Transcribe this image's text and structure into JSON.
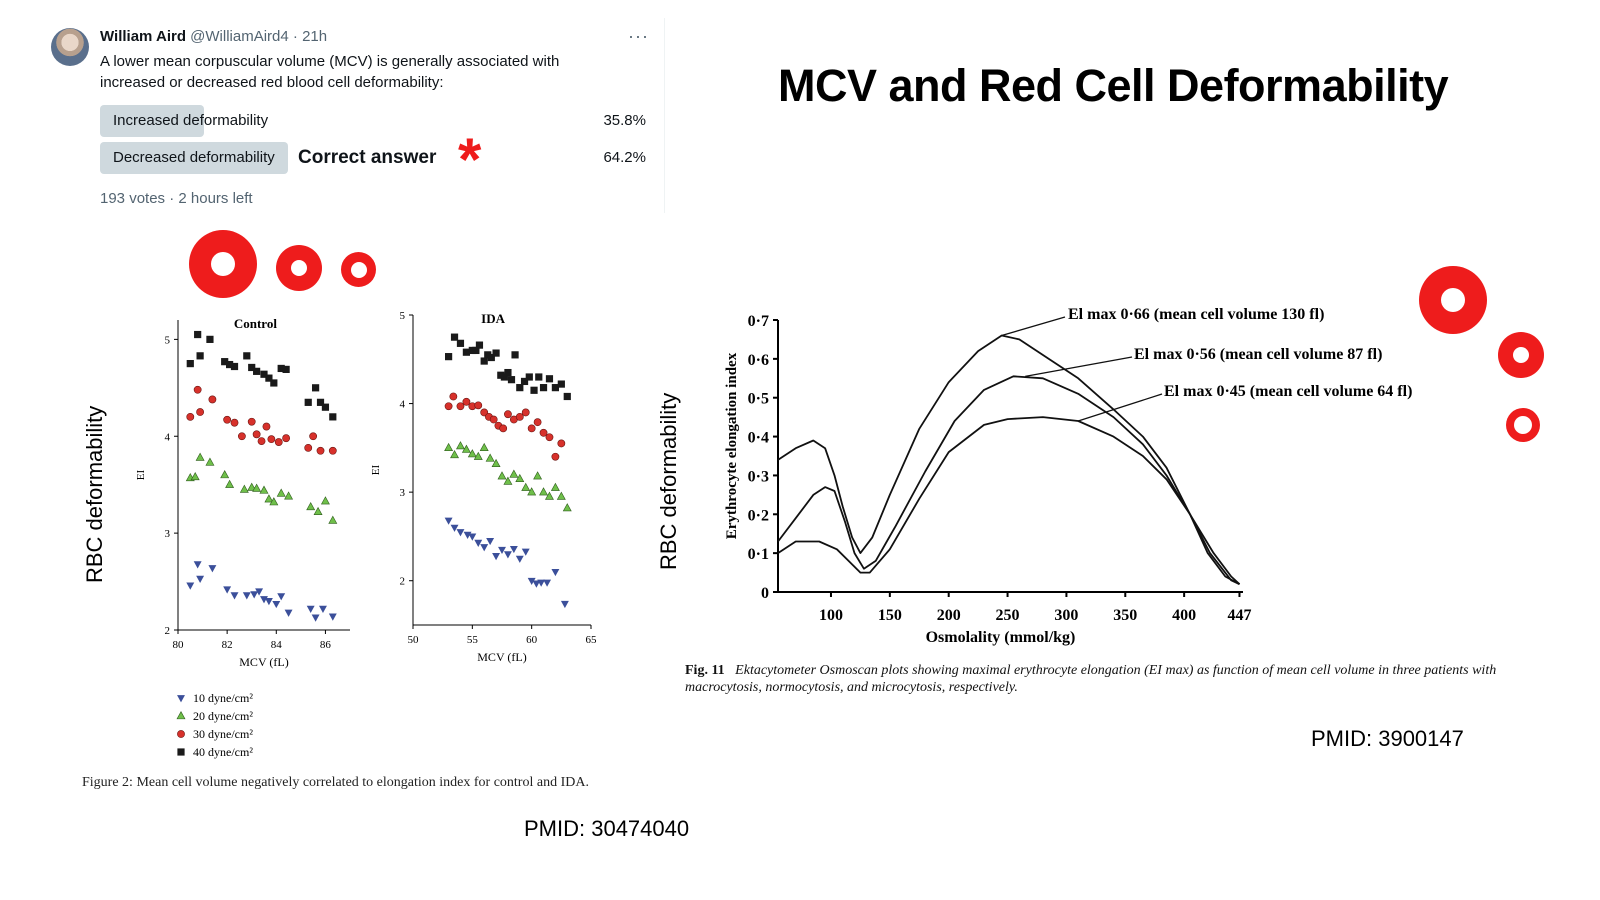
{
  "tweet": {
    "author_name": "William Aird",
    "author_meta": "@WilliamAird4 · 21h",
    "more_icon": "more-horizontal-icon",
    "question": "A lower mean corpuscular volume (MCV) is generally associated with increased or decreased red blood cell deformability:",
    "options": [
      {
        "label": "Increased deformability",
        "percent": "35.8%",
        "fraction": 0.358
      },
      {
        "label": "Decreased deformability",
        "percent": "64.2%",
        "fraction": 0.642
      }
    ],
    "correct_annotation": "Correct answer",
    "asterisk": "*",
    "votes": "193 votes · 2 hours left"
  },
  "title": "MCV and Red Cell Deformability",
  "accent_color": "#ee1c1c",
  "left_figure": {
    "side_label": "RBC deformability",
    "caption": "Figure 2: Mean cell volume negatively correlated to elongation index for control and IDA.",
    "pmid": "PMID: 30474040",
    "legend": [
      {
        "label": "10 dyne/cm²",
        "marker": "down-triangle",
        "color": "#3b4f9a"
      },
      {
        "label": "20 dyne/cm²",
        "marker": "up-triangle",
        "color": "#6fbf4a"
      },
      {
        "label": "30 dyne/cm²",
        "marker": "circle",
        "color": "#d7312b"
      },
      {
        "label": "40 dyne/cm²",
        "marker": "square",
        "color": "#1a1a1a"
      }
    ]
  },
  "right_figure": {
    "side_label": "RBC deformability",
    "annotations": [
      "El max 0·66 (mean cell volume 130 fl)",
      "El max 0·56 (mean cell volume 87 fl)",
      "El max 0·45 (mean cell volume 64 fl)"
    ],
    "caption_prefix": "Fig. 11",
    "caption": "Ektacytometer Osmoscan plots showing maximal erythrocyte elongation (EI max) as function of mean cell volume in three patients with macrocytosis, normocytosis, and microcytosis, respectively.",
    "pmid": "PMID: 3900147"
  },
  "chart_data": [
    {
      "type": "scatter",
      "title": "Control",
      "xlabel": "MCV (fL)",
      "ylabel": "EI",
      "xlim": [
        80,
        87
      ],
      "ylim": [
        2,
        5.2
      ],
      "xticks": [
        80,
        82,
        84,
        86
      ],
      "yticks": [
        2,
        3,
        4,
        5
      ],
      "grid": false,
      "series": [
        {
          "name": "40 dyne/cm²",
          "points": [
            [
              80.5,
              4.75
            ],
            [
              80.8,
              5.05
            ],
            [
              80.9,
              4.83
            ],
            [
              81.3,
              5.0
            ],
            [
              81.9,
              4.77
            ],
            [
              82.1,
              4.74
            ],
            [
              82.3,
              4.72
            ],
            [
              82.8,
              4.83
            ],
            [
              83.0,
              4.71
            ],
            [
              83.2,
              4.67
            ],
            [
              83.5,
              4.64
            ],
            [
              83.7,
              4.6
            ],
            [
              83.9,
              4.55
            ],
            [
              84.2,
              4.7
            ],
            [
              84.4,
              4.69
            ],
            [
              85.3,
              4.35
            ],
            [
              85.6,
              4.5
            ],
            [
              85.8,
              4.35
            ],
            [
              86.0,
              4.3
            ],
            [
              86.3,
              4.2
            ]
          ]
        },
        {
          "name": "30 dyne/cm²",
          "points": [
            [
              80.5,
              4.2
            ],
            [
              80.8,
              4.48
            ],
            [
              80.9,
              4.25
            ],
            [
              81.4,
              4.38
            ],
            [
              82.0,
              4.17
            ],
            [
              82.3,
              4.14
            ],
            [
              82.6,
              4.0
            ],
            [
              83.0,
              4.15
            ],
            [
              83.2,
              4.02
            ],
            [
              83.4,
              3.95
            ],
            [
              83.6,
              4.1
            ],
            [
              83.8,
              3.97
            ],
            [
              84.1,
              3.94
            ],
            [
              84.4,
              3.98
            ],
            [
              85.3,
              3.88
            ],
            [
              85.5,
              4.0
            ],
            [
              85.8,
              3.85
            ],
            [
              86.3,
              3.85
            ]
          ]
        },
        {
          "name": "20 dyne/cm²",
          "points": [
            [
              80.5,
              3.57
            ],
            [
              80.7,
              3.58
            ],
            [
              80.9,
              3.78
            ],
            [
              81.3,
              3.73
            ],
            [
              81.9,
              3.6
            ],
            [
              82.1,
              3.5
            ],
            [
              82.7,
              3.45
            ],
            [
              83.0,
              3.47
            ],
            [
              83.2,
              3.46
            ],
            [
              83.5,
              3.44
            ],
            [
              83.7,
              3.35
            ],
            [
              83.9,
              3.32
            ],
            [
              84.2,
              3.41
            ],
            [
              84.5,
              3.38
            ],
            [
              85.4,
              3.27
            ],
            [
              85.7,
              3.22
            ],
            [
              86.0,
              3.33
            ],
            [
              86.3,
              3.13
            ]
          ]
        },
        {
          "name": "10 dyne/cm²",
          "points": [
            [
              80.5,
              2.46
            ],
            [
              80.8,
              2.68
            ],
            [
              80.9,
              2.53
            ],
            [
              81.4,
              2.64
            ],
            [
              82.0,
              2.42
            ],
            [
              82.3,
              2.36
            ],
            [
              82.8,
              2.36
            ],
            [
              83.1,
              2.37
            ],
            [
              83.3,
              2.4
            ],
            [
              83.5,
              2.32
            ],
            [
              83.7,
              2.3
            ],
            [
              84.0,
              2.27
            ],
            [
              84.2,
              2.35
            ],
            [
              84.5,
              2.18
            ],
            [
              85.4,
              2.22
            ],
            [
              85.6,
              2.13
            ],
            [
              85.9,
              2.22
            ],
            [
              86.3,
              2.14
            ]
          ]
        }
      ]
    },
    {
      "type": "scatter",
      "title": "IDA",
      "xlabel": "MCV (fL)",
      "ylabel": "EI",
      "xlim": [
        50,
        65
      ],
      "ylim": [
        1.5,
        5
      ],
      "xticks": [
        50,
        55,
        60,
        65
      ],
      "yticks": [
        2,
        3,
        4,
        5
      ],
      "grid": false,
      "series": [
        {
          "name": "40 dyne/cm²",
          "points": [
            [
              53.0,
              4.53
            ],
            [
              53.5,
              4.75
            ],
            [
              54.0,
              4.68
            ],
            [
              54.5,
              4.58
            ],
            [
              55.0,
              4.6
            ],
            [
              55.3,
              4.6
            ],
            [
              55.6,
              4.66
            ],
            [
              56.0,
              4.48
            ],
            [
              56.3,
              4.55
            ],
            [
              56.6,
              4.52
            ],
            [
              57.0,
              4.57
            ],
            [
              57.4,
              4.32
            ],
            [
              57.7,
              4.3
            ],
            [
              58.0,
              4.35
            ],
            [
              58.3,
              4.27
            ],
            [
              58.6,
              4.55
            ],
            [
              59.0,
              4.18
            ],
            [
              59.4,
              4.25
            ],
            [
              59.8,
              4.3
            ],
            [
              60.2,
              4.15
            ],
            [
              60.6,
              4.3
            ],
            [
              61.0,
              4.18
            ],
            [
              61.5,
              4.28
            ],
            [
              62.0,
              4.18
            ],
            [
              62.5,
              4.22
            ],
            [
              63.0,
              4.08
            ]
          ]
        },
        {
          "name": "30 dyne/cm²",
          "points": [
            [
              53.0,
              3.97
            ],
            [
              53.4,
              4.08
            ],
            [
              54.0,
              3.97
            ],
            [
              54.5,
              4.02
            ],
            [
              55.0,
              3.97
            ],
            [
              55.5,
              3.98
            ],
            [
              56.0,
              3.9
            ],
            [
              56.4,
              3.85
            ],
            [
              56.8,
              3.82
            ],
            [
              57.2,
              3.75
            ],
            [
              57.6,
              3.72
            ],
            [
              58.0,
              3.88
            ],
            [
              58.5,
              3.82
            ],
            [
              59.0,
              3.85
            ],
            [
              59.5,
              3.9
            ],
            [
              60.0,
              3.72
            ],
            [
              60.5,
              3.79
            ],
            [
              61.0,
              3.67
            ],
            [
              61.5,
              3.62
            ],
            [
              62.0,
              3.4
            ],
            [
              62.5,
              3.55
            ]
          ]
        },
        {
          "name": "20 dyne/cm²",
          "points": [
            [
              53.0,
              3.5
            ],
            [
              53.5,
              3.42
            ],
            [
              54.0,
              3.52
            ],
            [
              54.5,
              3.48
            ],
            [
              55.0,
              3.43
            ],
            [
              55.5,
              3.4
            ],
            [
              56.0,
              3.5
            ],
            [
              56.5,
              3.38
            ],
            [
              57.0,
              3.32
            ],
            [
              57.5,
              3.18
            ],
            [
              58.0,
              3.12
            ],
            [
              58.5,
              3.2
            ],
            [
              59.0,
              3.15
            ],
            [
              59.5,
              3.05
            ],
            [
              60.0,
              3.0
            ],
            [
              60.5,
              3.18
            ],
            [
              61.0,
              3.0
            ],
            [
              61.5,
              2.95
            ],
            [
              62.0,
              3.05
            ],
            [
              62.5,
              2.95
            ],
            [
              63.0,
              2.82
            ]
          ]
        },
        {
          "name": "10 dyne/cm²",
          "points": [
            [
              53.0,
              2.68
            ],
            [
              53.5,
              2.6
            ],
            [
              54.0,
              2.55
            ],
            [
              54.6,
              2.52
            ],
            [
              55.0,
              2.5
            ],
            [
              55.5,
              2.43
            ],
            [
              56.0,
              2.38
            ],
            [
              56.5,
              2.45
            ],
            [
              57.0,
              2.28
            ],
            [
              57.5,
              2.35
            ],
            [
              58.0,
              2.3
            ],
            [
              58.5,
              2.36
            ],
            [
              59.0,
              2.25
            ],
            [
              59.5,
              2.33
            ],
            [
              60.0,
              2.0
            ],
            [
              60.4,
              1.97
            ],
            [
              60.8,
              1.98
            ],
            [
              61.3,
              1.98
            ],
            [
              62.0,
              2.1
            ],
            [
              62.8,
              1.74
            ]
          ]
        }
      ]
    },
    {
      "type": "line",
      "xlabel": "Osmolality (mmol/kg)",
      "ylabel": "Erythrocyte elongation index",
      "xlim": [
        55,
        450
      ],
      "ylim": [
        0,
        0.7
      ],
      "xticks": [
        100,
        150,
        200,
        250,
        300,
        350,
        400,
        447
      ],
      "yticks": [
        0,
        0.1,
        0.2,
        0.3,
        0.4,
        0.5,
        0.6,
        0.7
      ],
      "series": [
        {
          "name": "El max 0·66 (mean cell volume 130 fl)",
          "points": [
            [
              55,
              0.34
            ],
            [
              70,
              0.37
            ],
            [
              85,
              0.39
            ],
            [
              95,
              0.37
            ],
            [
              103,
              0.3
            ],
            [
              110,
              0.22
            ],
            [
              118,
              0.14
            ],
            [
              125,
              0.1
            ],
            [
              135,
              0.14
            ],
            [
              150,
              0.25
            ],
            [
              175,
              0.42
            ],
            [
              200,
              0.54
            ],
            [
              225,
              0.62
            ],
            [
              245,
              0.66
            ],
            [
              260,
              0.65
            ],
            [
              285,
              0.6
            ],
            [
              310,
              0.55
            ],
            [
              340,
              0.47
            ],
            [
              365,
              0.4
            ],
            [
              385,
              0.32
            ],
            [
              405,
              0.2
            ],
            [
              420,
              0.1
            ],
            [
              435,
              0.04
            ],
            [
              447,
              0.02
            ]
          ]
        },
        {
          "name": "El max 0·56 (mean cell volume 87 fl)",
          "points": [
            [
              55,
              0.13
            ],
            [
              70,
              0.19
            ],
            [
              85,
              0.25
            ],
            [
              95,
              0.27
            ],
            [
              103,
              0.26
            ],
            [
              112,
              0.18
            ],
            [
              120,
              0.1
            ],
            [
              128,
              0.06
            ],
            [
              138,
              0.08
            ],
            [
              155,
              0.17
            ],
            [
              180,
              0.31
            ],
            [
              205,
              0.44
            ],
            [
              230,
              0.52
            ],
            [
              255,
              0.555
            ],
            [
              280,
              0.55
            ],
            [
              310,
              0.51
            ],
            [
              340,
              0.45
            ],
            [
              365,
              0.38
            ],
            [
              385,
              0.3
            ],
            [
              405,
              0.2
            ],
            [
              422,
              0.1
            ],
            [
              440,
              0.03
            ],
            [
              447,
              0.02
            ]
          ]
        },
        {
          "name": "El max 0·45 (mean cell volume 64 fl)",
          "points": [
            [
              55,
              0.1
            ],
            [
              70,
              0.13
            ],
            [
              90,
              0.13
            ],
            [
              105,
              0.11
            ],
            [
              115,
              0.08
            ],
            [
              125,
              0.05
            ],
            [
              133,
              0.05
            ],
            [
              150,
              0.11
            ],
            [
              175,
              0.24
            ],
            [
              200,
              0.36
            ],
            [
              230,
              0.43
            ],
            [
              250,
              0.445
            ],
            [
              280,
              0.45
            ],
            [
              310,
              0.44
            ],
            [
              340,
              0.4
            ],
            [
              365,
              0.35
            ],
            [
              385,
              0.29
            ],
            [
              405,
              0.2
            ],
            [
              425,
              0.1
            ],
            [
              440,
              0.04
            ],
            [
              447,
              0.02
            ]
          ]
        }
      ]
    }
  ]
}
